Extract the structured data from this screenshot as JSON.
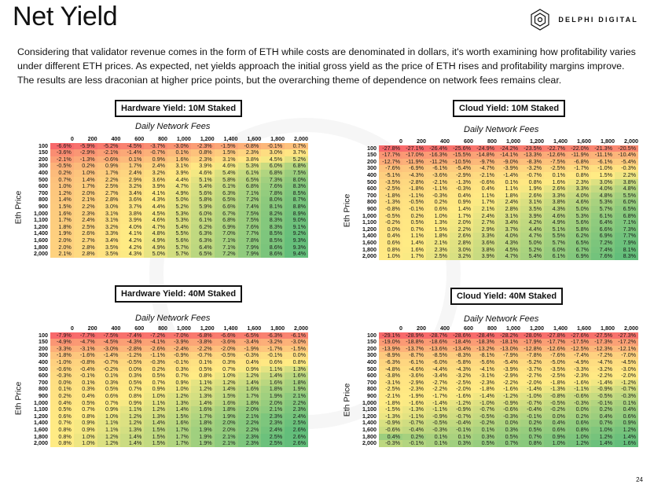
{
  "header": {
    "title": "Net Yield",
    "brand": "DELPHI DIGITAL",
    "brand_icon": "delphi-logo-icon"
  },
  "intro": {
    "line1": "Considering that validator revenue comes in the form of ETH while costs are denominated in dollars, it's worth examining how profitability varies",
    "line2": "under different ETH prices. As expected, net yields approach the initial gross yield as the price of ETH rises and profitability margins improve.",
    "line3": "The results are less draconian at higher price points, but the overarching theme of dependence on network fees remains clear."
  },
  "page_number": "24",
  "axis": {
    "fees_label": "Daily Network Fees",
    "eth_label": "Eth Price"
  },
  "columns": [
    "0",
    "200",
    "400",
    "600",
    "800",
    "1,000",
    "1,200",
    "1,400",
    "1,600",
    "1,800",
    "2,000"
  ],
  "rows": [
    "100",
    "150",
    "200",
    "300",
    "400",
    "500",
    "600",
    "700",
    "800",
    "900",
    "1,000",
    "1,100",
    "1,200",
    "1,400",
    "1,600",
    "1,800",
    "2,000"
  ],
  "colors": {
    "low": "#f8696b",
    "mid": "#ffeb84",
    "high": "#63be7b"
  },
  "tables": {
    "hw10": {
      "title": "Hardware Yield: 10M Staked",
      "data": [
        [
          "-6.6%",
          "-5.9%",
          "-5.2%",
          "-4.5%",
          "-3.7%",
          "-3.0%",
          "-2.3%",
          "-1.5%",
          "-0.8%",
          "-0.1%",
          "0.7%"
        ],
        [
          "-3.6%",
          "-2.9%",
          "-2.1%",
          "-1.4%",
          "-0.7%",
          "0.1%",
          "0.8%",
          "1.5%",
          "2.3%",
          "3.0%",
          "3.7%"
        ],
        [
          "-2.1%",
          "-1.3%",
          "-0.6%",
          "0.1%",
          "0.9%",
          "1.6%",
          "2.3%",
          "3.1%",
          "3.8%",
          "4.5%",
          "5.2%"
        ],
        [
          "-0.5%",
          "0.2%",
          "0.9%",
          "1.7%",
          "2.4%",
          "3.1%",
          "3.9%",
          "4.6%",
          "5.3%",
          "6.0%",
          "6.8%"
        ],
        [
          "0.2%",
          "1.0%",
          "1.7%",
          "2.4%",
          "3.2%",
          "3.9%",
          "4.6%",
          "5.4%",
          "6.1%",
          "6.8%",
          "7.5%"
        ],
        [
          "0.7%",
          "1.4%",
          "2.2%",
          "2.9%",
          "3.6%",
          "4.4%",
          "5.1%",
          "5.8%",
          "6.5%",
          "7.3%",
          "8.0%"
        ],
        [
          "1.0%",
          "1.7%",
          "2.5%",
          "3.2%",
          "3.9%",
          "4.7%",
          "5.4%",
          "6.1%",
          "6.8%",
          "7.6%",
          "8.3%"
        ],
        [
          "1.2%",
          "2.0%",
          "2.7%",
          "3.4%",
          "4.1%",
          "4.9%",
          "5.6%",
          "6.3%",
          "7.1%",
          "7.8%",
          "8.5%"
        ],
        [
          "1.4%",
          "2.1%",
          "2.8%",
          "3.6%",
          "4.3%",
          "5.0%",
          "5.8%",
          "6.5%",
          "7.2%",
          "8.0%",
          "8.7%"
        ],
        [
          "1.5%",
          "2.2%",
          "3.0%",
          "3.7%",
          "4.4%",
          "5.2%",
          "5.9%",
          "6.6%",
          "7.4%",
          "8.1%",
          "8.8%"
        ],
        [
          "1.6%",
          "2.3%",
          "3.1%",
          "3.8%",
          "4.5%",
          "5.3%",
          "6.0%",
          "6.7%",
          "7.5%",
          "8.2%",
          "8.9%"
        ],
        [
          "1.7%",
          "2.4%",
          "3.1%",
          "3.9%",
          "4.6%",
          "5.3%",
          "6.1%",
          "6.8%",
          "7.5%",
          "8.3%",
          "9.0%"
        ],
        [
          "1.8%",
          "2.5%",
          "3.2%",
          "4.0%",
          "4.7%",
          "5.4%",
          "6.2%",
          "6.9%",
          "7.6%",
          "8.3%",
          "9.1%"
        ],
        [
          "1.9%",
          "2.6%",
          "3.3%",
          "4.1%",
          "4.8%",
          "5.5%",
          "6.3%",
          "7.0%",
          "7.7%",
          "8.5%",
          "9.2%"
        ],
        [
          "2.0%",
          "2.7%",
          "3.4%",
          "4.2%",
          "4.9%",
          "5.6%",
          "6.3%",
          "7.1%",
          "7.8%",
          "8.5%",
          "9.3%"
        ],
        [
          "2.0%",
          "2.8%",
          "3.5%",
          "4.2%",
          "4.9%",
          "5.7%",
          "6.4%",
          "7.1%",
          "7.9%",
          "8.6%",
          "9.3%"
        ],
        [
          "2.1%",
          "2.8%",
          "3.5%",
          "4.3%",
          "5.0%",
          "5.7%",
          "6.5%",
          "7.2%",
          "7.9%",
          "8.6%",
          "9.4%"
        ]
      ]
    },
    "cloud10": {
      "title": "Cloud Yield: 10M Staked",
      "data": [
        [
          "-27.8%",
          "-27.1%",
          "-26.4%",
          "-25.6%",
          "-24.9%",
          "-24.2%",
          "-23.5%",
          "-22.7%",
          "-22.0%",
          "-21.3%",
          "-20.5%"
        ],
        [
          "-17.7%",
          "-17.0%",
          "-16.3%",
          "-15.5%",
          "-14.8%",
          "-14.1%",
          "-13.3%",
          "-12.6%",
          "-11.9%",
          "-11.1%",
          "-10.4%"
        ],
        [
          "-12.7%",
          "-11.9%",
          "-11.2%",
          "-10.5%",
          "-9.7%",
          "-9.0%",
          "-8.3%",
          "-7.5%",
          "-6.8%",
          "-6.1%",
          "-5.4%"
        ],
        [
          "-7.6%",
          "-6.9%",
          "-6.1%",
          "-5.4%",
          "-4.7%",
          "-3.9%",
          "-3.2%",
          "-2.5%",
          "-1.7%",
          "-1.0%",
          "-0.3%"
        ],
        [
          "-5.1%",
          "-4.3%",
          "-3.6%",
          "-2.9%",
          "-2.1%",
          "-1.4%",
          "-0.7%",
          "0.1%",
          "0.8%",
          "1.5%",
          "2.2%"
        ],
        [
          "-3.5%",
          "-2.8%",
          "-2.1%",
          "-1.3%",
          "-0.6%",
          "0.1%",
          "0.8%",
          "1.6%",
          "2.3%",
          "3.0%",
          "3.8%"
        ],
        [
          "-2.5%",
          "-1.8%",
          "-1.1%",
          "-0.3%",
          "0.4%",
          "1.1%",
          "1.9%",
          "2.6%",
          "3.3%",
          "4.0%",
          "4.8%"
        ],
        [
          "-1.8%",
          "-1.1%",
          "-0.3%",
          "0.4%",
          "1.1%",
          "1.8%",
          "2.6%",
          "3.3%",
          "4.0%",
          "4.8%",
          "5.5%"
        ],
        [
          "-1.3%",
          "-0.5%",
          "0.2%",
          "0.9%",
          "1.7%",
          "2.4%",
          "3.1%",
          "3.8%",
          "4.6%",
          "5.3%",
          "6.0%"
        ],
        [
          "-0.8%",
          "-0.1%",
          "0.6%",
          "1.4%",
          "2.1%",
          "2.8%",
          "3.5%",
          "4.3%",
          "5.0%",
          "5.7%",
          "6.5%"
        ],
        [
          "-0.5%",
          "0.2%",
          "1.0%",
          "1.7%",
          "2.4%",
          "3.1%",
          "3.9%",
          "4.6%",
          "5.3%",
          "6.1%",
          "6.8%"
        ],
        [
          "-0.2%",
          "0.5%",
          "1.3%",
          "2.0%",
          "2.7%",
          "3.4%",
          "4.2%",
          "4.9%",
          "5.6%",
          "6.4%",
          "7.1%"
        ],
        [
          "0.0%",
          "0.7%",
          "1.5%",
          "2.2%",
          "2.9%",
          "3.7%",
          "4.4%",
          "5.1%",
          "5.8%",
          "6.6%",
          "7.3%"
        ],
        [
          "0.4%",
          "1.1%",
          "1.8%",
          "2.6%",
          "3.3%",
          "4.0%",
          "4.7%",
          "5.5%",
          "6.2%",
          "6.9%",
          "7.7%"
        ],
        [
          "0.6%",
          "1.4%",
          "2.1%",
          "2.8%",
          "3.6%",
          "4.3%",
          "5.0%",
          "5.7%",
          "6.5%",
          "7.2%",
          "7.9%"
        ],
        [
          "0.8%",
          "1.6%",
          "2.3%",
          "3.0%",
          "3.8%",
          "4.5%",
          "5.2%",
          "6.0%",
          "6.7%",
          "7.4%",
          "8.1%"
        ],
        [
          "1.0%",
          "1.7%",
          "2.5%",
          "3.2%",
          "3.9%",
          "4.7%",
          "5.4%",
          "6.1%",
          "6.9%",
          "7.6%",
          "8.3%"
        ]
      ]
    },
    "hw40": {
      "title": "Hardware Yield: 40M Staked",
      "data": [
        [
          "-7.9%",
          "-7.7%",
          "-7.5%",
          "-7.4%",
          "-7.2%",
          "-7.0%",
          "-6.8%",
          "-6.6%",
          "-6.5%",
          "-6.3%",
          "-6.1%"
        ],
        [
          "-4.9%",
          "-4.7%",
          "-4.5%",
          "-4.3%",
          "-4.1%",
          "-3.9%",
          "-3.8%",
          "-3.6%",
          "-3.4%",
          "-3.2%",
          "-3.0%"
        ],
        [
          "-3.3%",
          "-3.1%",
          "-3.0%",
          "-2.8%",
          "-2.6%",
          "-2.4%",
          "-2.2%",
          "-2.0%",
          "-1.9%",
          "-1.7%",
          "-1.5%"
        ],
        [
          "-1.8%",
          "-1.6%",
          "-1.4%",
          "-1.2%",
          "-1.1%",
          "-0.9%",
          "-0.7%",
          "-0.5%",
          "-0.3%",
          "-0.1%",
          "0.0%"
        ],
        [
          "-1.0%",
          "-0.8%",
          "-0.7%",
          "-0.5%",
          "-0.3%",
          "-0.1%",
          "0.1%",
          "0.3%",
          "0.4%",
          "0.6%",
          "0.8%"
        ],
        [
          "-0.6%",
          "-0.4%",
          "-0.2%",
          "0.0%",
          "0.2%",
          "0.3%",
          "0.5%",
          "0.7%",
          "0.9%",
          "1.1%",
          "1.3%"
        ],
        [
          "-0.3%",
          "-0.1%",
          "0.1%",
          "0.3%",
          "0.5%",
          "0.7%",
          "0.8%",
          "1.0%",
          "1.2%",
          "1.4%",
          "1.6%"
        ],
        [
          "0.0%",
          "0.1%",
          "0.3%",
          "0.5%",
          "0.7%",
          "0.9%",
          "1.1%",
          "1.2%",
          "1.4%",
          "1.6%",
          "1.8%"
        ],
        [
          "0.1%",
          "0.3%",
          "0.5%",
          "0.7%",
          "0.9%",
          "1.0%",
          "1.2%",
          "1.4%",
          "1.6%",
          "1.8%",
          "1.9%"
        ],
        [
          "0.2%",
          "0.4%",
          "0.6%",
          "0.8%",
          "1.0%",
          "1.2%",
          "1.3%",
          "1.5%",
          "1.7%",
          "1.9%",
          "2.1%"
        ],
        [
          "0.4%",
          "0.5%",
          "0.7%",
          "0.9%",
          "1.1%",
          "1.3%",
          "1.4%",
          "1.6%",
          "1.8%",
          "2.0%",
          "2.2%"
        ],
        [
          "0.5%",
          "0.7%",
          "0.9%",
          "1.1%",
          "1.2%",
          "1.4%",
          "1.6%",
          "1.8%",
          "2.0%",
          "2.1%",
          "2.3%"
        ],
        [
          "0.6%",
          "0.8%",
          "1.0%",
          "1.2%",
          "1.3%",
          "1.5%",
          "1.7%",
          "1.9%",
          "2.1%",
          "2.3%",
          "2.4%"
        ],
        [
          "0.7%",
          "0.9%",
          "1.1%",
          "1.2%",
          "1.4%",
          "1.6%",
          "1.8%",
          "2.0%",
          "2.2%",
          "2.3%",
          "2.5%"
        ],
        [
          "0.8%",
          "0.9%",
          "1.1%",
          "1.3%",
          "1.5%",
          "1.7%",
          "1.9%",
          "2.0%",
          "2.2%",
          "2.4%",
          "2.6%"
        ],
        [
          "0.8%",
          "1.0%",
          "1.2%",
          "1.4%",
          "1.5%",
          "1.7%",
          "1.9%",
          "2.1%",
          "2.3%",
          "2.5%",
          "2.6%"
        ],
        [
          "0.8%",
          "1.0%",
          "1.2%",
          "1.4%",
          "1.5%",
          "1.7%",
          "1.9%",
          "2.1%",
          "2.3%",
          "2.5%",
          "2.6%"
        ]
      ]
    },
    "cloud40": {
      "title": "Cloud Yield: 40M Staked",
      "data": [
        [
          "-29.1%",
          "-28.9%",
          "-28.7%",
          "-28.6%",
          "-28.4%",
          "-28.2%",
          "-28.0%",
          "-27.8%",
          "-27.6%",
          "-27.5%",
          "-27.3%"
        ],
        [
          "-19.0%",
          "-18.8%",
          "-18.6%",
          "-18.4%",
          "-18.3%",
          "-18.1%",
          "-17.9%",
          "-17.7%",
          "-17.5%",
          "-17.3%",
          "-17.2%"
        ],
        [
          "-13.9%",
          "-13.7%",
          "-13.6%",
          "-13.4%",
          "-13.2%",
          "-13.0%",
          "-12.8%",
          "-12.6%",
          "-12.5%",
          "-12.3%",
          "-12.1%"
        ],
        [
          "-8.9%",
          "-8.7%",
          "-8.5%",
          "-8.3%",
          "-8.1%",
          "-7.9%",
          "-7.8%",
          "-7.6%",
          "-7.4%",
          "-7.2%",
          "-7.0%"
        ],
        [
          "-6.3%",
          "-6.1%",
          "-6.0%",
          "-5.8%",
          "-5.6%",
          "-5.4%",
          "-5.2%",
          "-5.0%",
          "-4.9%",
          "-4.7%",
          "-4.5%"
        ],
        [
          "-4.8%",
          "-4.6%",
          "-4.4%",
          "-4.3%",
          "-4.1%",
          "-3.9%",
          "-3.7%",
          "-3.5%",
          "-3.3%",
          "-3.2%",
          "-3.0%"
        ],
        [
          "-3.8%",
          "-3.6%",
          "-3.4%",
          "-3.2%",
          "-3.1%",
          "-2.9%",
          "-2.7%",
          "-2.5%",
          "-2.3%",
          "-2.2%",
          "-2.0%"
        ],
        [
          "-3.1%",
          "-2.9%",
          "-2.7%",
          "-2.5%",
          "-2.3%",
          "-2.2%",
          "-2.0%",
          "-1.8%",
          "-1.6%",
          "-1.4%",
          "-1.2%"
        ],
        [
          "-2.5%",
          "-2.3%",
          "-2.2%",
          "-2.0%",
          "-1.8%",
          "-1.6%",
          "-1.4%",
          "-1.3%",
          "-1.1%",
          "-0.9%",
          "-0.7%"
        ],
        [
          "-2.1%",
          "-1.9%",
          "-1.7%",
          "-1.6%",
          "-1.4%",
          "-1.2%",
          "-1.0%",
          "-0.8%",
          "-0.6%",
          "-0.5%",
          "-0.3%"
        ],
        [
          "-1.8%",
          "-1.6%",
          "-1.4%",
          "-1.2%",
          "-1.0%",
          "-0.9%",
          "-0.7%",
          "-0.5%",
          "-0.3%",
          "-0.1%",
          "0.1%"
        ],
        [
          "-1.5%",
          "-1.3%",
          "-1.1%",
          "-0.9%",
          "-0.7%",
          "-0.6%",
          "-0.4%",
          "-0.2%",
          "0.0%",
          "0.2%",
          "0.4%"
        ],
        [
          "-1.3%",
          "-1.1%",
          "-0.9%",
          "-0.7%",
          "-0.5%",
          "-0.3%",
          "-0.1%",
          "0.0%",
          "0.2%",
          "0.4%",
          "0.6%"
        ],
        [
          "-0.9%",
          "-0.7%",
          "-0.5%",
          "-0.4%",
          "-0.2%",
          "0.0%",
          "0.2%",
          "0.4%",
          "0.6%",
          "0.7%",
          "0.9%"
        ],
        [
          "-0.6%",
          "-0.4%",
          "-0.3%",
          "-0.1%",
          "0.1%",
          "0.3%",
          "0.5%",
          "0.6%",
          "0.8%",
          "1.0%",
          "1.2%"
        ],
        [
          "0.4%",
          "0.2%",
          "0.1%",
          "0.1%",
          "0.3%",
          "0.5%",
          "0.7%",
          "0.9%",
          "1.0%",
          "1.2%",
          "1.4%"
        ],
        [
          "-0.3%",
          "-0.1%",
          "0.1%",
          "0.3%",
          "0.5%",
          "0.7%",
          "0.8%",
          "1.0%",
          "1.2%",
          "1.4%",
          "1.6%"
        ]
      ]
    }
  }
}
